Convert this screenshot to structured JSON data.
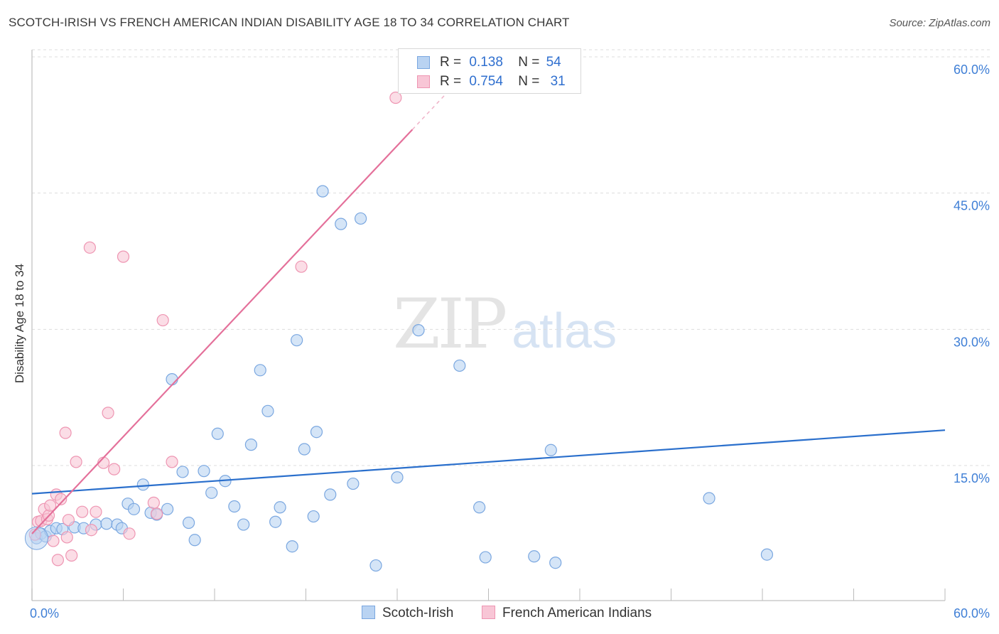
{
  "title": "SCOTCH-IRISH VS FRENCH AMERICAN INDIAN DISABILITY AGE 18 TO 34 CORRELATION CHART",
  "source": "Source: ZipAtlas.com",
  "watermark": {
    "zip": "ZIP",
    "atlas": "atlas"
  },
  "legend": {
    "rows": [
      {
        "r_label": "R =",
        "r_value": "0.138",
        "n_label": "N =",
        "n_value": "54"
      },
      {
        "r_label": "R =",
        "r_value": "0.754",
        "n_label": "N =",
        "n_value": "31"
      }
    ]
  },
  "colors": {
    "blue_fill": "#b9d3f2",
    "blue_stroke": "#7aa7e0",
    "blue_line": "#2a6fcc",
    "pink_fill": "#f8c6d6",
    "pink_stroke": "#ee95b2",
    "pink_line": "#e4709a",
    "grid": "#dddddd",
    "tick_label": "#3f7fd6"
  },
  "chart_data": {
    "type": "scatter",
    "title": "SCOTCH-IRISH VS FRENCH AMERICAN INDIAN DISABILITY AGE 18 TO 34 CORRELATION CHART",
    "xlabel": "",
    "ylabel": "Disability Age 18 to 34",
    "xlim": [
      0,
      60
    ],
    "ylim": [
      0,
      62
    ],
    "x_tick_labels": [
      "0.0%",
      "60.0%"
    ],
    "y_ticks": [
      15,
      30,
      45,
      60
    ],
    "y_tick_labels": [
      "15.0%",
      "30.0%",
      "45.0%",
      "60.0%"
    ],
    "grid": true,
    "legend_position": "top-center",
    "series": [
      {
        "name": "Scotch-Irish",
        "r": 0.138,
        "n": 54,
        "trend": {
          "x0": 0,
          "y0": 11.9,
          "x1": 60,
          "y1": 18.9
        },
        "points": [
          [
            0.3,
            7.0
          ],
          [
            0.6,
            7.5
          ],
          [
            0.9,
            7.2
          ],
          [
            1.2,
            7.8
          ],
          [
            1.6,
            8.1
          ],
          [
            2.0,
            8.0
          ],
          [
            2.8,
            8.2
          ],
          [
            3.4,
            8.1
          ],
          [
            4.2,
            8.5
          ],
          [
            4.9,
            8.6
          ],
          [
            5.6,
            8.5
          ],
          [
            5.9,
            8.1
          ],
          [
            6.3,
            10.8
          ],
          [
            6.7,
            10.2
          ],
          [
            7.3,
            12.9
          ],
          [
            7.8,
            9.8
          ],
          [
            8.2,
            9.6
          ],
          [
            8.9,
            10.2
          ],
          [
            9.2,
            24.5
          ],
          [
            9.9,
            14.3
          ],
          [
            10.3,
            8.7
          ],
          [
            10.7,
            6.8
          ],
          [
            11.3,
            14.4
          ],
          [
            11.8,
            12.0
          ],
          [
            12.2,
            18.5
          ],
          [
            12.7,
            13.3
          ],
          [
            13.3,
            10.5
          ],
          [
            13.9,
            8.5
          ],
          [
            14.4,
            17.3
          ],
          [
            15.0,
            25.5
          ],
          [
            15.5,
            21.0
          ],
          [
            16.0,
            8.8
          ],
          [
            16.3,
            10.4
          ],
          [
            17.1,
            6.1
          ],
          [
            17.4,
            28.8
          ],
          [
            17.9,
            16.8
          ],
          [
            18.5,
            9.4
          ],
          [
            18.7,
            18.7
          ],
          [
            19.1,
            45.2
          ],
          [
            19.6,
            11.8
          ],
          [
            20.3,
            41.6
          ],
          [
            21.1,
            13.0
          ],
          [
            21.6,
            42.2
          ],
          [
            22.6,
            4.0
          ],
          [
            24.0,
            13.7
          ],
          [
            25.4,
            29.9
          ],
          [
            28.1,
            26.0
          ],
          [
            29.4,
            10.4
          ],
          [
            29.8,
            4.9
          ],
          [
            33.0,
            5.0
          ],
          [
            34.1,
            16.7
          ],
          [
            34.4,
            4.3
          ],
          [
            44.5,
            11.4
          ],
          [
            48.3,
            5.2
          ]
        ]
      },
      {
        "name": "French American Indians",
        "r": 0.754,
        "n": 31,
        "trend": {
          "x0": 0,
          "y0": 7.5,
          "x1": 25.0,
          "y1": 52.0
        },
        "points": [
          [
            0.2,
            7.4
          ],
          [
            0.4,
            8.8
          ],
          [
            0.6,
            8.9
          ],
          [
            0.8,
            10.2
          ],
          [
            1.0,
            9.1
          ],
          [
            1.1,
            9.5
          ],
          [
            1.2,
            10.6
          ],
          [
            1.4,
            6.7
          ],
          [
            1.6,
            11.8
          ],
          [
            1.7,
            4.6
          ],
          [
            1.9,
            11.3
          ],
          [
            2.2,
            18.6
          ],
          [
            2.3,
            7.1
          ],
          [
            2.4,
            9.0
          ],
          [
            2.6,
            5.1
          ],
          [
            2.9,
            15.4
          ],
          [
            3.3,
            9.9
          ],
          [
            3.8,
            39.0
          ],
          [
            3.9,
            7.9
          ],
          [
            4.2,
            9.9
          ],
          [
            4.7,
            15.3
          ],
          [
            5.0,
            20.8
          ],
          [
            5.4,
            14.6
          ],
          [
            6.0,
            38.0
          ],
          [
            6.4,
            7.5
          ],
          [
            8.0,
            10.9
          ],
          [
            8.6,
            31.0
          ],
          [
            9.2,
            15.4
          ],
          [
            17.7,
            36.9
          ],
          [
            23.9,
            55.5
          ],
          [
            8.2,
            9.7
          ]
        ]
      }
    ]
  },
  "bottom_legend": [
    "Scotch-Irish",
    "French American Indians"
  ]
}
